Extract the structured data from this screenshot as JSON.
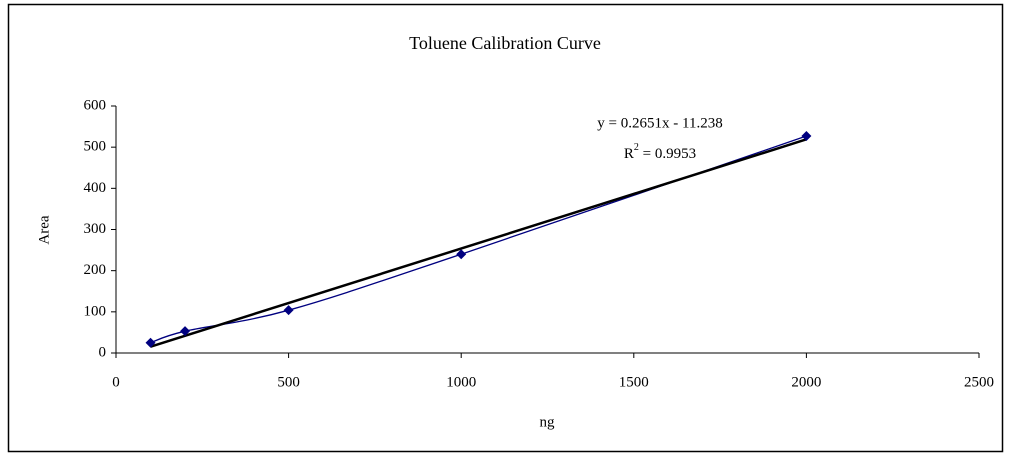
{
  "chart_data": {
    "type": "scatter",
    "title": "Toluene Calibration Curve",
    "x_label": "ng",
    "y_label": "Area",
    "x": [
      100,
      200,
      500,
      1000,
      2000
    ],
    "series": [
      {
        "name": "Area",
        "color": "#000080",
        "values": [
          25,
          53,
          104,
          240,
          527
        ]
      }
    ],
    "smooth_line": true,
    "trendline": {
      "slope": 0.2651,
      "intercept": -11.238,
      "color": "#000000",
      "equation": "y = 0.2651x - 11.238",
      "r_squared": 0.9953,
      "r_squared_label": [
        "R",
        "2",
        " = 0.9953"
      ]
    },
    "xlim": [
      0,
      2500
    ],
    "xticks": [
      0,
      500,
      1000,
      1500,
      2000,
      2500
    ],
    "ylim": [
      0,
      600
    ],
    "yticks": [
      0,
      100,
      200,
      300,
      400,
      500,
      600
    ],
    "grid": false
  }
}
